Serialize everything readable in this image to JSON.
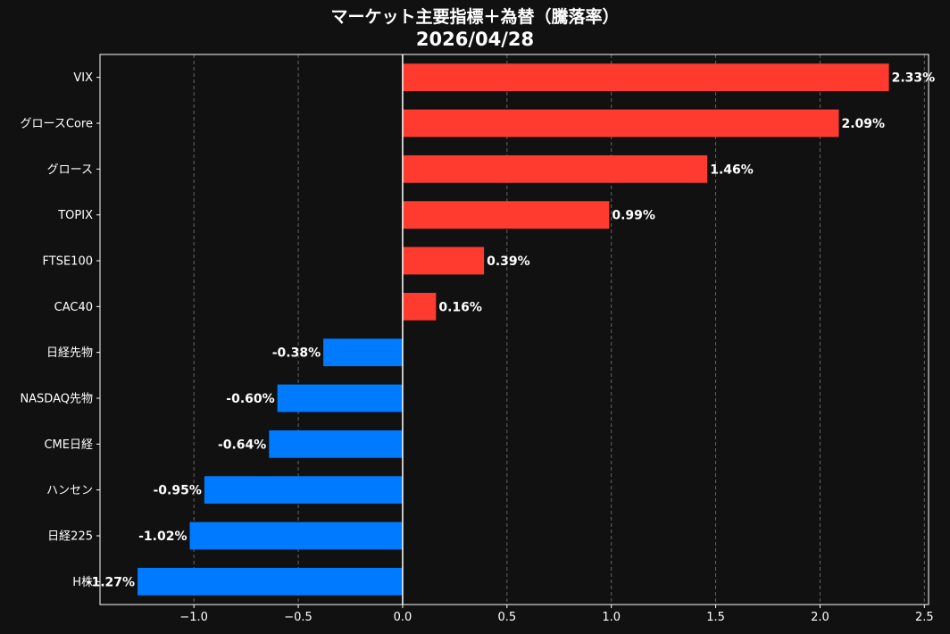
{
  "title": {
    "line1": "マーケット主要指標＋為替（騰落率）",
    "line2": "2026/04/28"
  },
  "colors": {
    "background": "#111111",
    "positive": "#ff3b30",
    "negative": "#007aff",
    "axis": "#ffffff",
    "grid": "#666666",
    "text": "#ffffff"
  },
  "chart_data": {
    "type": "bar",
    "orientation": "horizontal",
    "title": "マーケット主要指標＋為替（騰落率） 2026/04/28",
    "categories": [
      "VIX",
      "グロースCore",
      "グロース",
      "TOPIX",
      "FTSE100",
      "CAC40",
      "日経先物",
      "NASDAQ先物",
      "CME日経",
      "ハンセン",
      "日経225",
      "H株"
    ],
    "values": [
      2.33,
      2.09,
      1.46,
      0.99,
      0.39,
      0.16,
      -0.38,
      -0.6,
      -0.64,
      -0.95,
      -1.02,
      -1.27
    ],
    "value_labels": [
      "2.33%",
      "2.09%",
      "1.46%",
      "0.99%",
      "0.39%",
      "0.16%",
      "-0.38%",
      "-0.60%",
      "-0.64%",
      "-0.95%",
      "-1.02%",
      "-1.27%"
    ],
    "xlim": [
      -1.45,
      2.52
    ],
    "x_ticks": [
      -1.0,
      -0.5,
      0.0,
      0.5,
      1.0,
      1.5,
      2.0,
      2.5
    ],
    "x_tick_labels": [
      "−1.0",
      "−0.5",
      "0.0",
      "0.5",
      "1.0",
      "1.5",
      "2.0",
      "2.5"
    ],
    "grid": "x-dashed",
    "xlabel": "",
    "ylabel": ""
  }
}
